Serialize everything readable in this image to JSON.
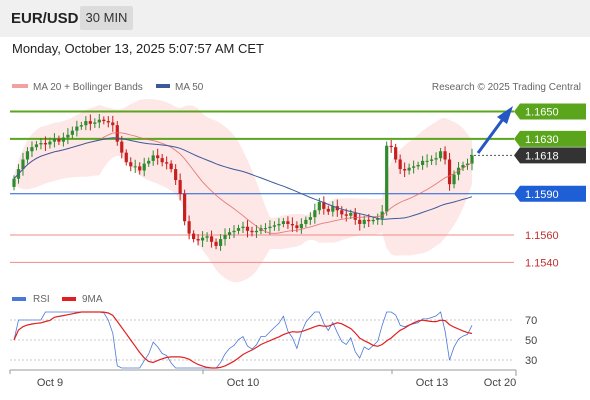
{
  "header": {
    "symbol": "EUR/USD",
    "timeframe": "30 MIN"
  },
  "datetime": "Monday, October 13, 2025 5:07:57 AM CET",
  "copyright": "Research © 2025 Trading Central",
  "colors": {
    "resistance": "#5aa51c",
    "support_main": "#1f5fd6",
    "support": "#f18a8a",
    "price_box": "#333333",
    "ma20": "#e06060",
    "ma50": "#3c5a9a",
    "bull_candle": "#2e8b2e",
    "bear_candle": "#c81e1e",
    "rsi": "#4a78d8",
    "rsi_ma": "#e02020"
  },
  "chart_data": [
    {
      "type": "candlestick",
      "title": "",
      "legend": [
        "MA 20 + Bollinger Bands",
        "MA 50"
      ],
      "ylim": [
        1.1533,
        1.1662
      ],
      "levels": [
        {
          "label": "1.1650",
          "value": 1.165,
          "kind": "resistance"
        },
        {
          "label": "1.1630",
          "value": 1.163,
          "kind": "resistance"
        },
        {
          "label": "1.1618",
          "value": 1.1618,
          "kind": "last_price"
        },
        {
          "label": "1.1590",
          "value": 1.159,
          "kind": "pivot"
        },
        {
          "label": "1.1560",
          "value": 1.156,
          "kind": "support"
        },
        {
          "label": "1.1540",
          "value": 1.154,
          "kind": "support"
        }
      ],
      "close": [
        1.1601,
        1.1608,
        1.1615,
        1.1621,
        1.1624,
        1.1626,
        1.1627,
        1.1626,
        1.1628,
        1.163,
        1.1628,
        1.1631,
        1.1633,
        1.1636,
        1.1639,
        1.164,
        1.1643,
        1.1641,
        1.1642,
        1.1644,
        1.1643,
        1.1642,
        1.164,
        1.1628,
        1.162,
        1.1613,
        1.161,
        1.161,
        1.1607,
        1.1612,
        1.1614,
        1.1618,
        1.1616,
        1.1613,
        1.1612,
        1.1608,
        1.16,
        1.159,
        1.157,
        1.1561,
        1.1557,
        1.1556,
        1.1558,
        1.1559,
        1.1555,
        1.1552,
        1.1557,
        1.156,
        1.1562,
        1.1563,
        1.1565,
        1.1566,
        1.1563,
        1.1562,
        1.1563,
        1.1565,
        1.1565,
        1.1566,
        1.1567,
        1.1568,
        1.157,
        1.1568,
        1.1567,
        1.1565,
        1.1568,
        1.1571,
        1.1573,
        1.1578,
        1.1584,
        1.1579,
        1.1577,
        1.1581,
        1.1578,
        1.1575,
        1.1574,
        1.1576,
        1.1571,
        1.1568,
        1.1571,
        1.157,
        1.1571,
        1.1572,
        1.1577,
        1.1625,
        1.1624,
        1.1615,
        1.1608,
        1.1607,
        1.1609,
        1.161,
        1.1611,
        1.1614,
        1.1614,
        1.1615,
        1.1616,
        1.1621,
        1.1615,
        1.1597,
        1.1604,
        1.1609,
        1.1611,
        1.1612,
        1.1618
      ],
      "x_ticks": [
        "Oct 9",
        "Oct 10",
        "Oct 13",
        "Oct 20"
      ]
    },
    {
      "type": "line",
      "legend": [
        "RSI",
        "9MA"
      ],
      "ylim": [
        20,
        80
      ],
      "y_ticks": [
        70,
        50,
        30
      ],
      "guide_levels": [
        70,
        50,
        30
      ]
    }
  ]
}
